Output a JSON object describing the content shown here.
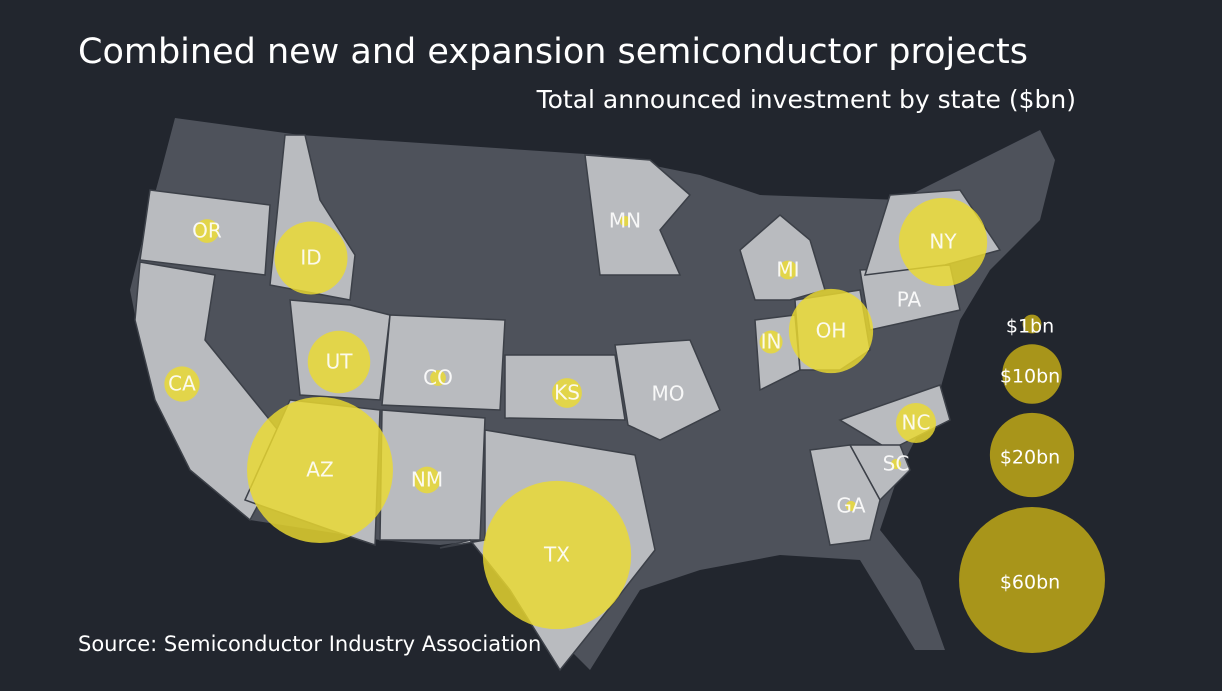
{
  "title": "Combined new and expansion semiconductor projects",
  "subtitle": "Total announced investment by state ($bn)",
  "source": "Source: Semiconductor Industry Association",
  "states": [
    {
      "label": "OR",
      "value": 1.6
    },
    {
      "label": "ID",
      "value": 15
    },
    {
      "label": "CA",
      "value": 3.5
    },
    {
      "label": "UT",
      "value": 11
    },
    {
      "label": "AZ",
      "value": 60
    },
    {
      "label": "NM",
      "value": 2
    },
    {
      "label": "CO",
      "value": 0.7
    },
    {
      "label": "KS",
      "value": 2.5
    },
    {
      "label": "TX",
      "value": 62
    },
    {
      "label": "MO",
      "value": null
    },
    {
      "label": "MN",
      "value": 0.3
    },
    {
      "label": "MI",
      "value": 1
    },
    {
      "label": "IN",
      "value": 1.5
    },
    {
      "label": "OH",
      "value": 20
    },
    {
      "label": "PA",
      "value": null
    },
    {
      "label": "NY",
      "value": 22
    },
    {
      "label": "NC",
      "value": 4.5
    },
    {
      "label": "SC",
      "value": 0.3
    },
    {
      "label": "GA",
      "value": 0.3
    }
  ],
  "legend": [
    {
      "value": 1,
      "label": "$1bn"
    },
    {
      "value": 10,
      "label": "$10bn"
    },
    {
      "value": 20,
      "label": "$20bn"
    },
    {
      "value": 60,
      "label": "$60bn"
    }
  ]
}
